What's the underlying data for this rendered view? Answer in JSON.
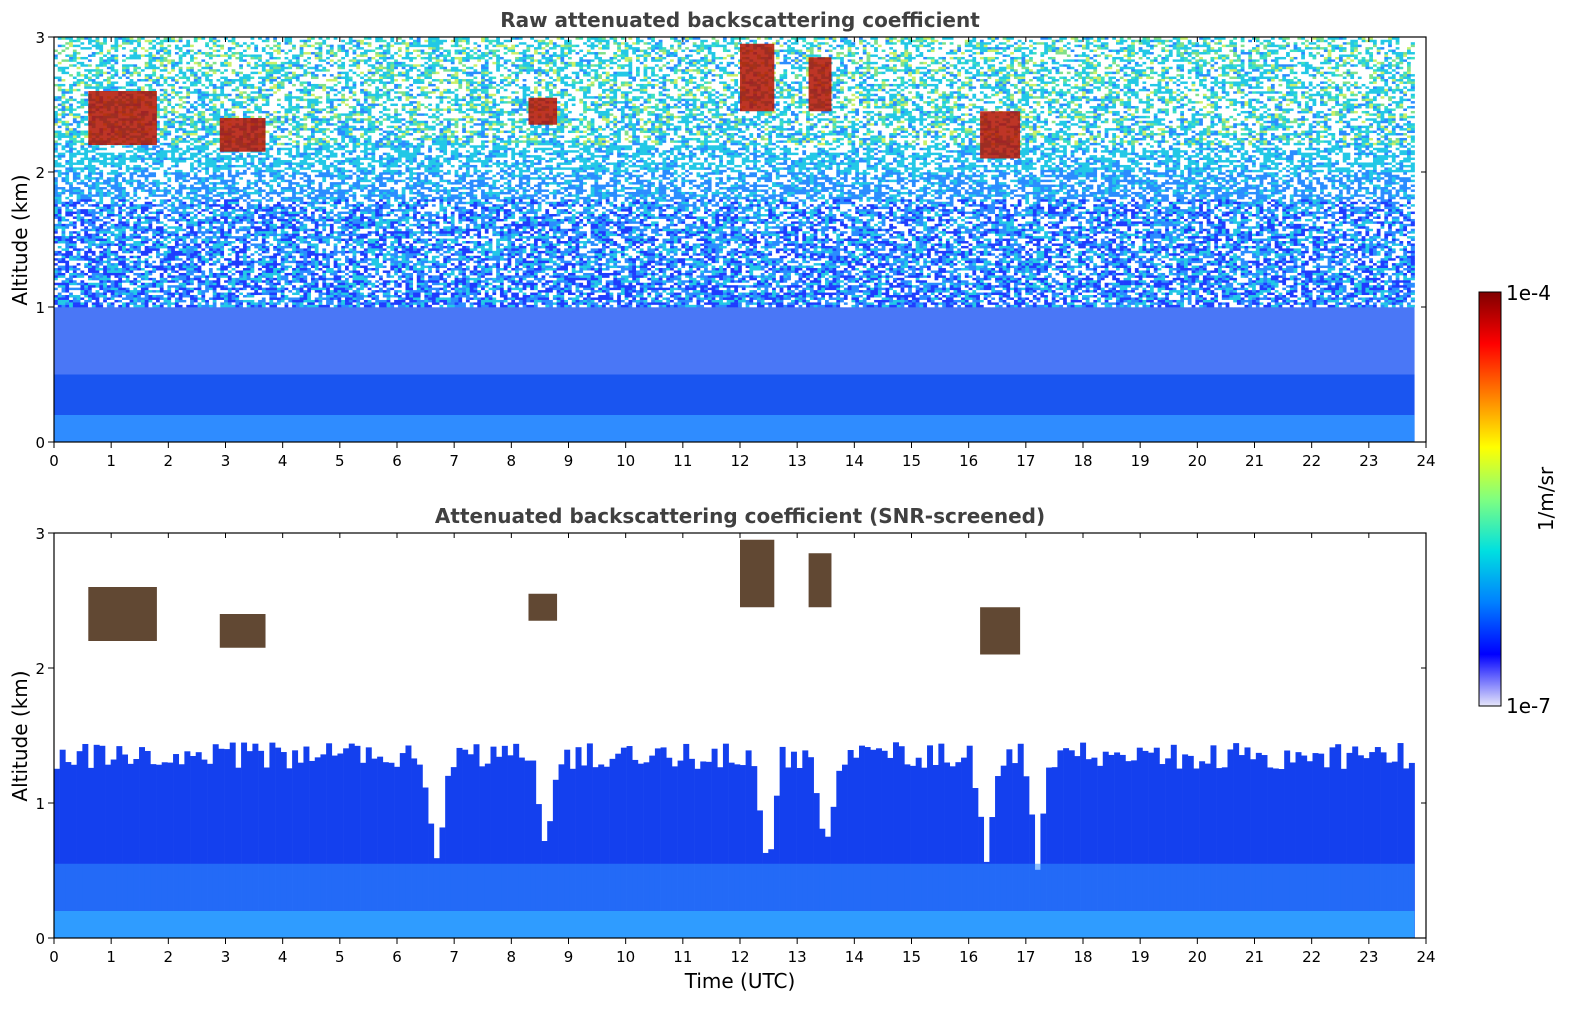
{
  "figure": {
    "xlabel": "Time (UTC)",
    "colorbar": {
      "label": "1/m/sr",
      "min_label": "1e-7",
      "max_label": "1e-4",
      "scale": "log",
      "colors": [
        "#e6e6fa",
        "#0000ff",
        "#0080ff",
        "#00e0e0",
        "#80ff80",
        "#ffff00",
        "#ff8000",
        "#ff0000",
        "#800000"
      ]
    }
  },
  "chart_data": [
    {
      "type": "heatmap",
      "title": "Raw attenuated backscattering coefficient",
      "xlabel": "",
      "ylabel": "Altitude (km)",
      "xlim": [
        0,
        24
      ],
      "ylim": [
        0,
        3
      ],
      "xticks": [
        "0",
        "1",
        "2",
        "3",
        "4",
        "5",
        "6",
        "7",
        "8",
        "9",
        "10",
        "11",
        "12",
        "13",
        "14",
        "15",
        "16",
        "17",
        "18",
        "19",
        "20",
        "21",
        "22",
        "23",
        "24"
      ],
      "yticks": [
        "0",
        "1",
        "2",
        "3"
      ],
      "variable": "attenuated backscatter",
      "units": "1/m/sr",
      "color_range": [
        "1e-7",
        "1e-4"
      ],
      "features": {
        "boundary_layer_top_km": 0.5,
        "noise_dominated_above_km": 1.0,
        "cloud_patches": [
          {
            "t0": 0.6,
            "t1": 1.8,
            "z0": 2.2,
            "z1": 2.6
          },
          {
            "t0": 2.9,
            "t1": 3.7,
            "z0": 2.15,
            "z1": 2.4
          },
          {
            "t0": 8.3,
            "t1": 8.8,
            "z0": 2.35,
            "z1": 2.55
          },
          {
            "t0": 12.0,
            "t1": 12.6,
            "z0": 2.45,
            "z1": 2.95
          },
          {
            "t0": 13.2,
            "t1": 13.6,
            "z0": 2.45,
            "z1": 2.85
          },
          {
            "t0": 16.2,
            "t1": 16.9,
            "z0": 2.1,
            "z1": 2.45
          }
        ]
      }
    },
    {
      "type": "heatmap",
      "title": "Attenuated backscattering coefficient (SNR-screened)",
      "xlabel": "Time (UTC)",
      "ylabel": "Altitude (km)",
      "xlim": [
        0,
        24
      ],
      "ylim": [
        0,
        3
      ],
      "xticks": [
        "0",
        "1",
        "2",
        "3",
        "4",
        "5",
        "6",
        "7",
        "8",
        "9",
        "10",
        "11",
        "12",
        "13",
        "14",
        "15",
        "16",
        "17",
        "18",
        "19",
        "20",
        "21",
        "22",
        "23",
        "24"
      ],
      "yticks": [
        "0",
        "1",
        "2",
        "3"
      ],
      "variable": "attenuated backscatter (SNR-screened)",
      "units": "1/m/sr",
      "color_range": [
        "1e-7",
        "1e-4"
      ],
      "features": {
        "valid_signal_top_km": 1.3,
        "screened_dip_times": [
          6.7,
          8.6,
          12.5,
          13.5,
          16.3,
          17.2
        ]
      }
    }
  ]
}
